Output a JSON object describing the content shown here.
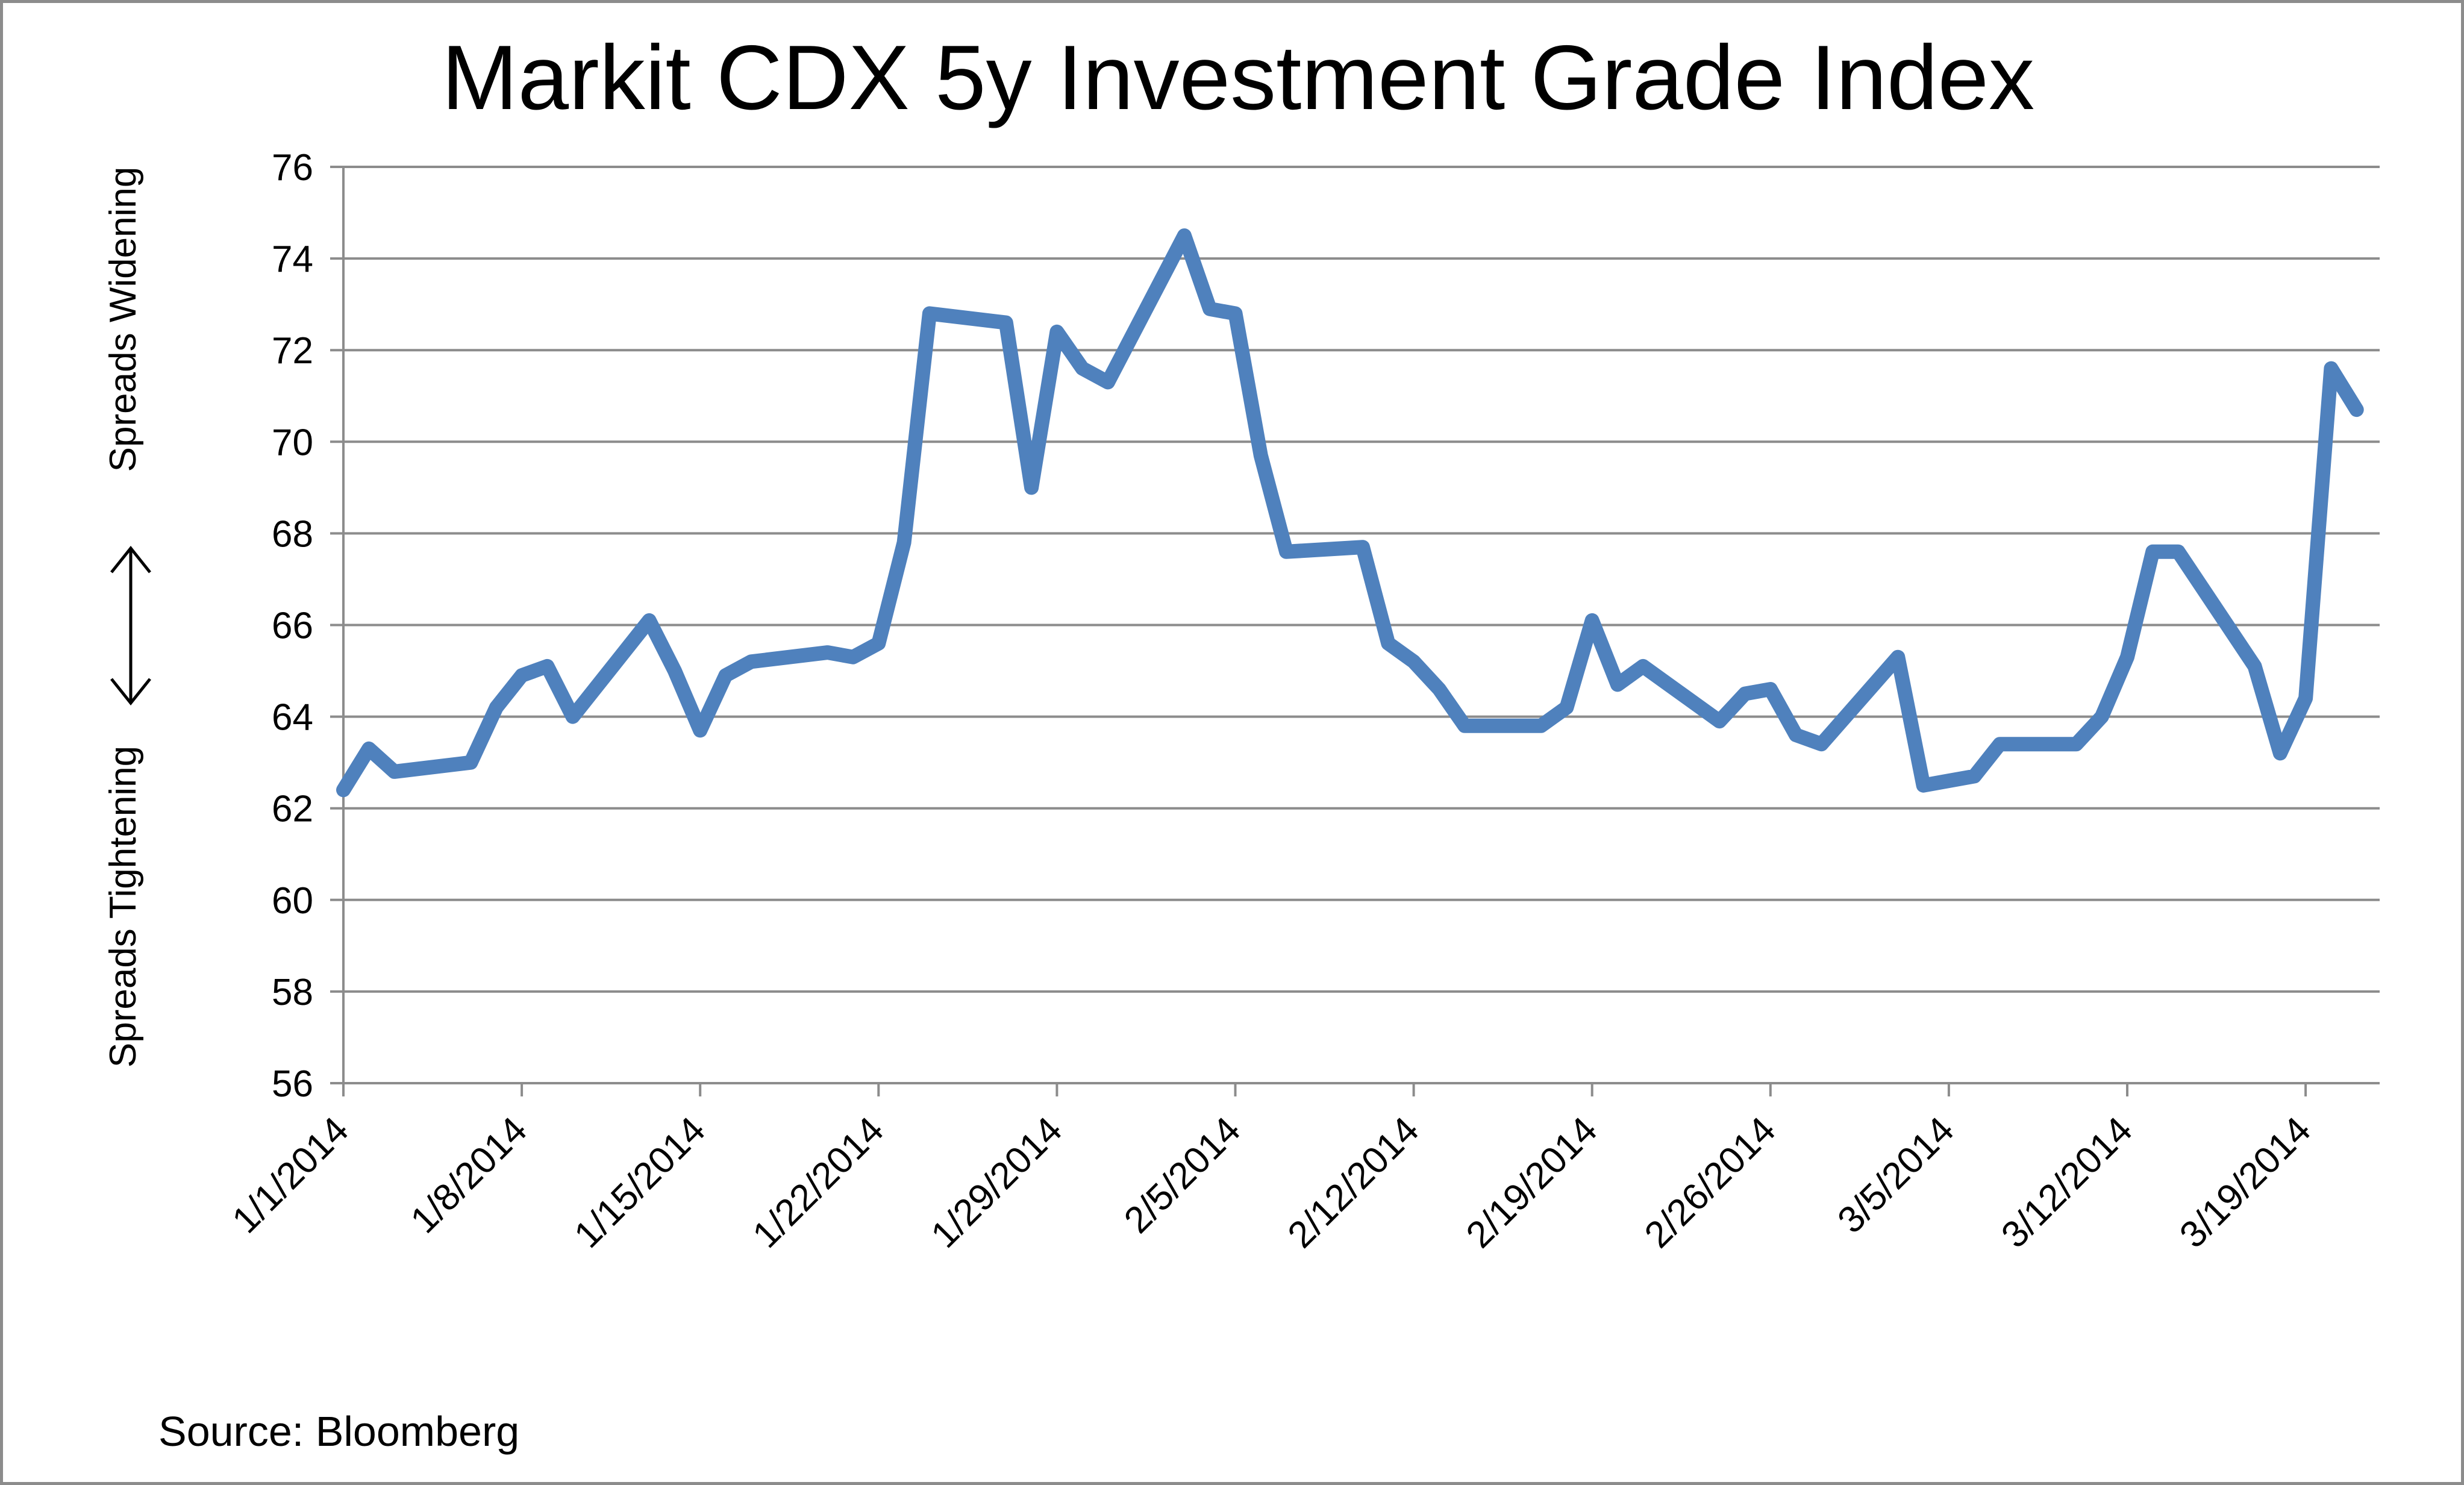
{
  "chart_data": {
    "type": "line",
    "title": "Markit CDX 5y Investment Grade Index",
    "ylabel_top": "Spreads Widening",
    "ylabel_bottom": "Spreads Tightening",
    "xlabel": "",
    "ylim": [
      56,
      76
    ],
    "y_ticks": [
      56,
      58,
      60,
      62,
      64,
      66,
      68,
      70,
      72,
      74,
      76
    ],
    "x_ticks": [
      "1/1/2014",
      "1/8/2014",
      "1/15/2014",
      "1/22/2014",
      "1/29/2014",
      "2/5/2014",
      "2/12/2014",
      "2/19/2014",
      "2/26/2014",
      "3/5/2014",
      "3/12/2014",
      "3/19/2014"
    ],
    "grid": true,
    "legend": "none",
    "series": [
      {
        "color": "#4f81bd",
        "x": [
          "2014-01-01",
          "2014-01-02",
          "2014-01-03",
          "2014-01-06",
          "2014-01-07",
          "2014-01-08",
          "2014-01-09",
          "2014-01-10",
          "2014-01-13",
          "2014-01-14",
          "2014-01-15",
          "2014-01-16",
          "2014-01-17",
          "2014-01-20",
          "2014-01-21",
          "2014-01-22",
          "2014-01-23",
          "2014-01-24",
          "2014-01-27",
          "2014-01-28",
          "2014-01-29",
          "2014-01-30",
          "2014-01-31",
          "2014-02-03",
          "2014-02-04",
          "2014-02-05",
          "2014-02-06",
          "2014-02-07",
          "2014-02-10",
          "2014-02-11",
          "2014-02-12",
          "2014-02-13",
          "2014-02-14",
          "2014-02-17",
          "2014-02-18",
          "2014-02-19",
          "2014-02-20",
          "2014-02-21",
          "2014-02-24",
          "2014-02-25",
          "2014-02-26",
          "2014-02-27",
          "2014-02-28",
          "2014-03-03",
          "2014-03-04",
          "2014-03-05",
          "2014-03-06",
          "2014-03-07",
          "2014-03-10",
          "2014-03-11",
          "2014-03-12",
          "2014-03-13",
          "2014-03-14",
          "2014-03-17",
          "2014-03-18",
          "2014-03-19",
          "2014-03-20",
          "2014-03-21"
        ],
        "y": [
          62.4,
          63.3,
          62.8,
          63.0,
          64.2,
          64.9,
          65.1,
          64.0,
          66.1,
          65.0,
          63.7,
          64.9,
          65.2,
          65.4,
          65.3,
          65.6,
          67.8,
          72.8,
          72.6,
          69.0,
          72.4,
          71.6,
          71.3,
          74.5,
          72.9,
          72.8,
          69.7,
          67.6,
          67.7,
          65.6,
          65.2,
          64.6,
          63.8,
          63.8,
          64.2,
          66.1,
          64.7,
          65.1,
          63.9,
          64.5,
          64.6,
          63.6,
          63.4,
          65.3,
          62.5,
          62.6,
          62.7,
          63.4,
          63.4,
          64.0,
          65.3,
          67.6,
          67.6,
          65.1,
          63.2,
          64.4,
          71.6,
          70.7
        ]
      }
    ],
    "source": "Source: Bloomberg"
  }
}
